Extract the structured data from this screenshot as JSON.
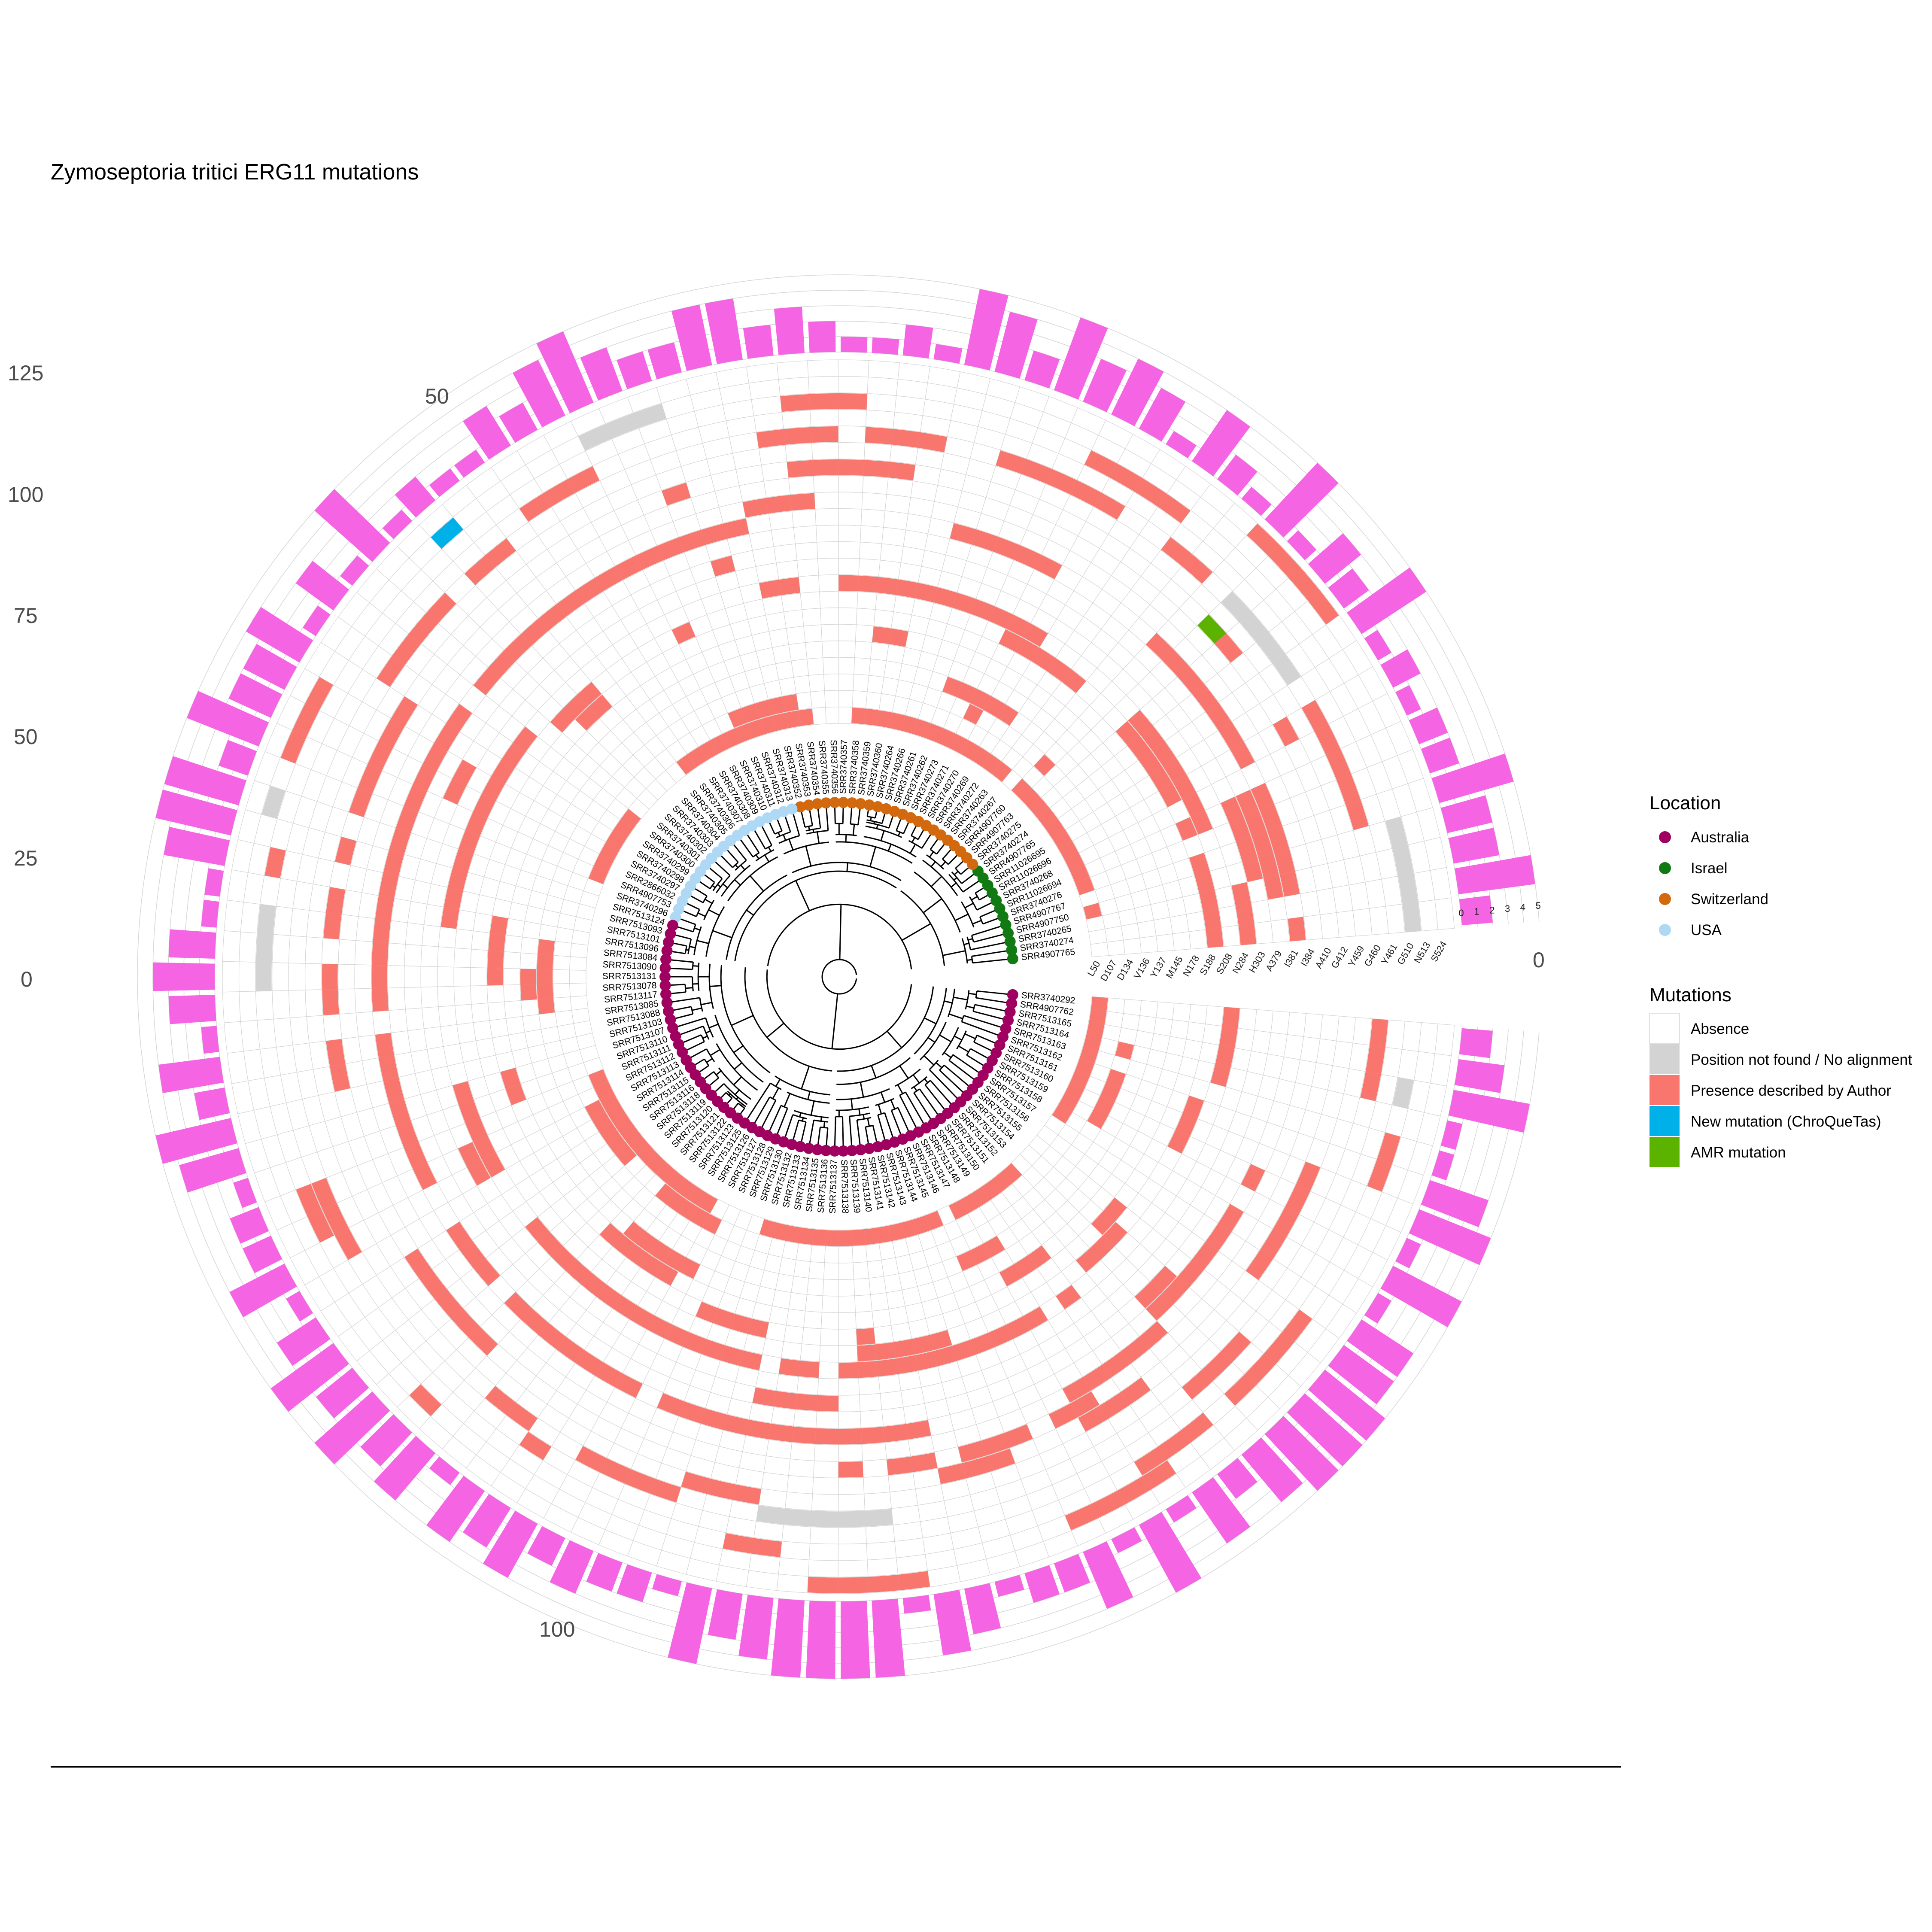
{
  "title": "Zymoseptoria tritici ERG11 mutations",
  "colors": {
    "absence": "#ffffff",
    "not_found": "#d3d3d3",
    "presence": "#f8766d",
    "new_mutation": "#00b0e8",
    "amr": "#5bb300",
    "count_bar": "#f564e3",
    "australia": "#a0005f",
    "israel": "#117a13",
    "switzerland": "#d2690e",
    "usa": "#afd8f5",
    "grid": "#d6d6d6",
    "tree": "#000000"
  },
  "legend": {
    "location_title": "Location",
    "locations": [
      {
        "label": "Australia",
        "color": "#a0005f"
      },
      {
        "label": "Israel",
        "color": "#117a13"
      },
      {
        "label": "Switzerland",
        "color": "#d2690e"
      },
      {
        "label": "USA",
        "color": "#afd8f5"
      }
    ],
    "mutations_title": "Mutations",
    "mutations": [
      {
        "label": "Absence",
        "color": "#ffffff"
      },
      {
        "label": "Position not found / No alignment",
        "color": "#d3d3d3"
      },
      {
        "label": "Presence described by Author",
        "color": "#f8766d"
      },
      {
        "label": "New mutation (ChroQueTas)",
        "color": "#00b0e8"
      },
      {
        "label": "AMR mutation",
        "color": "#5bb300"
      }
    ]
  },
  "chart_data": {
    "type": "heatmap",
    "title": "Zymoseptoria tritici ERG11 mutations",
    "layout": "circular phylogenetic tree with mutation heatmap rings and outer mutation-count bar ring",
    "angular_axis_ticks": [
      "0",
      "50",
      "100"
    ],
    "radial_axis_ticks": [
      "0",
      "25",
      "50",
      "75",
      "100",
      "125"
    ],
    "count_axis_ticks": [
      "0",
      "1",
      "2",
      "3",
      "4",
      "5"
    ],
    "count_axis_range": [
      0,
      5
    ],
    "mutation_positions": [
      "L50",
      "D107",
      "D134",
      "V136",
      "Y137",
      "M145",
      "N178",
      "S188",
      "S208",
      "N284",
      "H303",
      "A379",
      "I381",
      "I384",
      "A410",
      "G412",
      "Y459",
      "G460",
      "Y461",
      "G510",
      "N513",
      "S524"
    ],
    "locations_order": [
      "Israel",
      "Switzerland",
      "USA",
      "Australia"
    ],
    "tip_counts": {
      "Israel": 12,
      "Switzerland": 23,
      "USA": 20,
      "Australia": 68
    },
    "visible_tip_labels": {
      "israel": [
        "SRR4907765",
        "SRR3740274",
        "SRR3740265",
        "SRR4907750",
        "SRR4907767",
        "SRR3740276",
        "SRR11026694",
        "SRR3740268",
        "SRR11026696",
        "SRR11026695"
      ],
      "switzerland": [
        "SRR3740275",
        "SRR4907763",
        "SRR4907760",
        "SRR3740267",
        "SRR3740263",
        "SRR3740272",
        "SRR3740269",
        "SRR3740270",
        "SRR3740271",
        "SRR3740273",
        "SRR3740262",
        "SRR3740261",
        "SRR3740266",
        "SRR3740264",
        "SRR3740360",
        "SRR3740359",
        "SRR3740358",
        "SRR3740357",
        "SRR3740356",
        "SRR3740355",
        "SRR3740354",
        "SRR3740353",
        "SRR3740352"
      ],
      "usa": [
        "SRR3740313",
        "SRR3740312",
        "SRR3740311",
        "SRR3740310",
        "SRR3740309",
        "SRR3740308",
        "SRR3740307",
        "SRR3740306",
        "SRR3740305",
        "SRR3740304",
        "SRR3740303",
        "SRR3740302",
        "SRR3740301",
        "SRR3740300",
        "SRR3740299",
        "SRR3740298",
        "SRR3740297",
        "SRR2866032",
        "SRR4907753",
        "SRR3740296"
      ],
      "australia": [
        "SRR7513124",
        "SRR7513093",
        "SRR7513101",
        "SRR7513096",
        "SRR7513084",
        "SRR7513090",
        "SRR7513131",
        "SRR7513078",
        "SRR7513117",
        "SRR7513085",
        "SRR7513088",
        "SRR7513103",
        "SRR7513107",
        "SRR7513110",
        "SRR7513111",
        "SRR7513112",
        "SRR7513113",
        "SRR7513114",
        "SRR7513115",
        "SRR7513116",
        "SRR7513118",
        "SRR7513119",
        "SRR7513120",
        "SRR7513121",
        "SRR7513122",
        "SRR7513123",
        "SRR7513125",
        "SRR7513126",
        "SRR7513127",
        "SRR7513128",
        "SRR7513129",
        "SRR7513130",
        "SRR7513132",
        "SRR7513133",
        "SRR7513134",
        "SRR7513135",
        "SRR7513136",
        "SRR7513137",
        "SRR7513138",
        "SRR7513139",
        "SRR7513140",
        "SRR7513141",
        "SRR7513142",
        "SRR7513143",
        "SRR7513144",
        "SRR7513145",
        "SRR7513146",
        "SRR7513147",
        "SRR7513148",
        "SRR7513149",
        "SRR7513150",
        "SRR7513151",
        "SRR7513152",
        "SRR7513153",
        "SRR7513154",
        "SRR7513155",
        "SRR7513156",
        "SRR7513157",
        "SRR7513158",
        "SRR7513159",
        "SRR7513160",
        "SRR7513161",
        "SRR7513162",
        "SRR7513163",
        "SRR7513164",
        "SRR7513165",
        "SRR4907762",
        "SRR3740292"
      ]
    },
    "ring_presence_fraction_estimate": [
      0.55,
      0.05,
      0.1,
      0.05,
      0.05,
      0.1,
      0.15,
      0.2,
      0.35,
      0.05,
      0.1,
      0.05,
      0.4,
      0.05,
      0.1,
      0.3,
      0.05,
      0.35,
      0.05,
      0.2,
      0.1,
      0.02
    ],
    "count_bars_max": 5
  }
}
